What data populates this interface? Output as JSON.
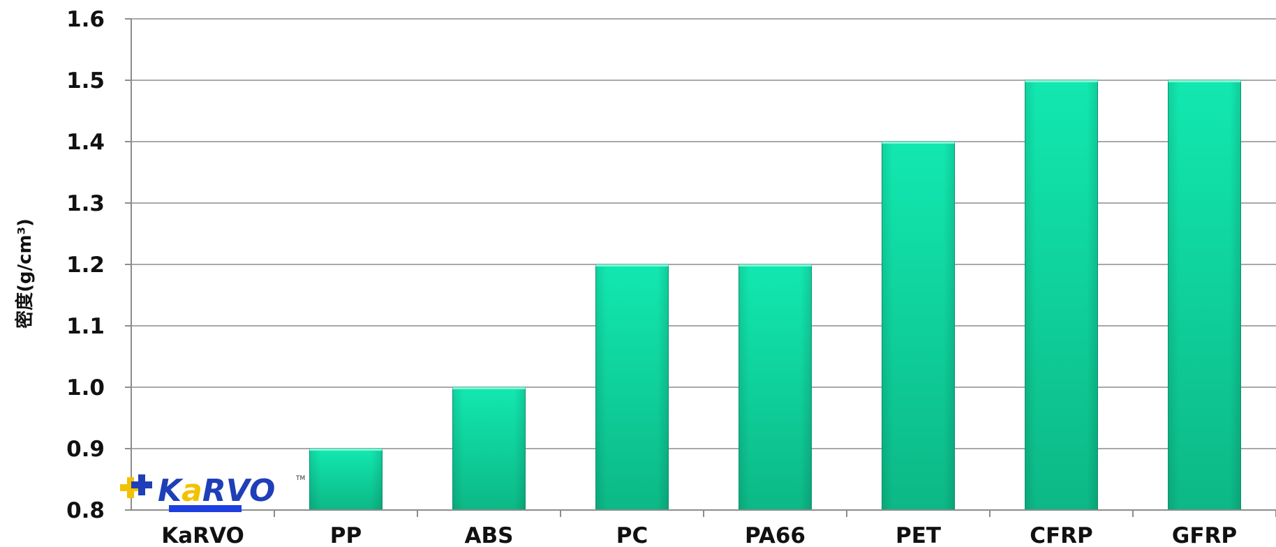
{
  "chart_data": {
    "type": "bar",
    "categories": [
      "KaRVO",
      "PP",
      "ABS",
      "PC",
      "PA66",
      "PET",
      "CFRP",
      "GFRP"
    ],
    "values": [
      null,
      0.9,
      1.0,
      1.2,
      1.2,
      1.4,
      1.5,
      1.5
    ],
    "title": "",
    "xlabel": "",
    "ylabel": "密度(g/cm³)",
    "ylim": [
      0.8,
      1.6
    ],
    "yticks": [
      "0.8",
      "0.9",
      "1.0",
      "1.1",
      "1.2",
      "1.3",
      "1.4",
      "1.5",
      "1.6"
    ],
    "grid": true,
    "legend": "none",
    "bar_color": "#0fd6a0"
  },
  "logo": {
    "text_k": "K",
    "text_a": "a",
    "text_rvo": "RVO",
    "tm": "TM",
    "colors": {
      "blue": "#1f3fb8",
      "yellow": "#f2c200",
      "bar": "#1e3fe0"
    }
  }
}
